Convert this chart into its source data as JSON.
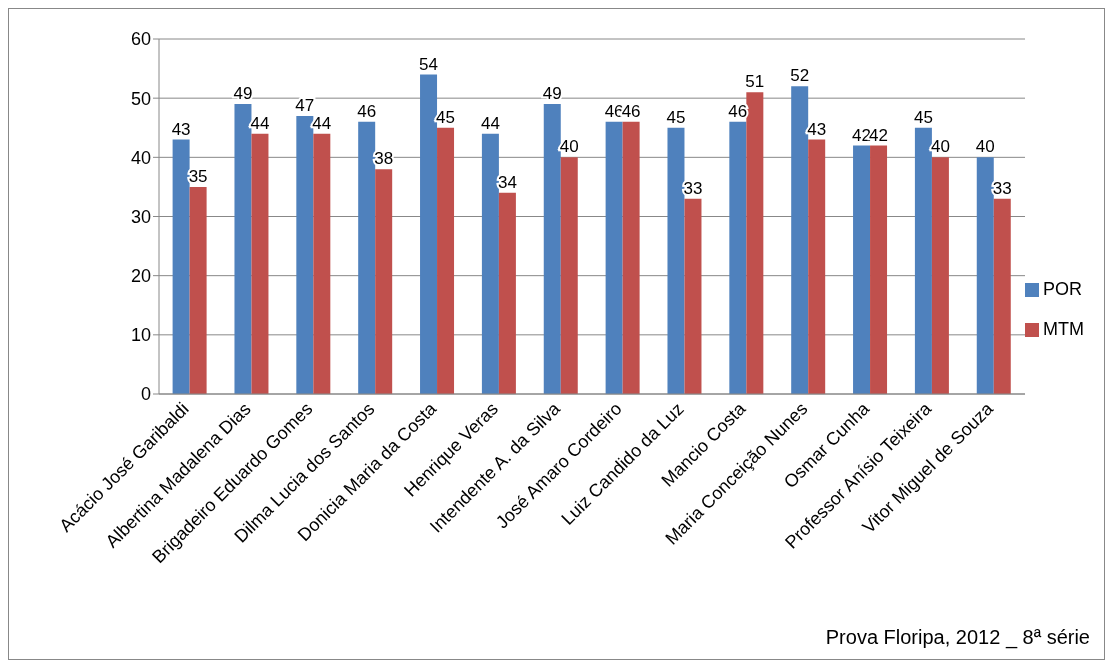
{
  "chart_data": {
    "type": "bar",
    "categories": [
      "Acácio José Garibaldi",
      "Albertina Madalena Dias",
      "Brigadeiro Eduardo Gomes",
      "Dilma Lucia dos Santos",
      "Donicia Maria da Costa",
      "Henrique Veras",
      "Intendente A. da Silva",
      "José Amaro Cordeiro",
      "Luiz Candido da Luz",
      "Mancio Costa",
      "Maria Conceição Nunes",
      "Osmar Cunha",
      "Professor Anísio Teixeira",
      "Vitor Miguel de Souza"
    ],
    "series": [
      {
        "name": "POR",
        "color": "#4f81bd",
        "values": [
          43,
          49,
          47,
          46,
          54,
          44,
          49,
          46,
          45,
          46,
          52,
          42,
          45,
          40
        ]
      },
      {
        "name": "MTM",
        "color": "#c0504d",
        "values": [
          35,
          44,
          44,
          38,
          45,
          34,
          40,
          46,
          33,
          51,
          43,
          42,
          40,
          33
        ]
      }
    ],
    "ylim": [
      0,
      60
    ],
    "yticks": [
      0,
      10,
      20,
      30,
      40,
      50,
      60
    ],
    "grid": "y",
    "legend": "right",
    "data_labels": true,
    "annotations": [
      "Prova Floripa, 2012 _ 8ª série"
    ]
  }
}
